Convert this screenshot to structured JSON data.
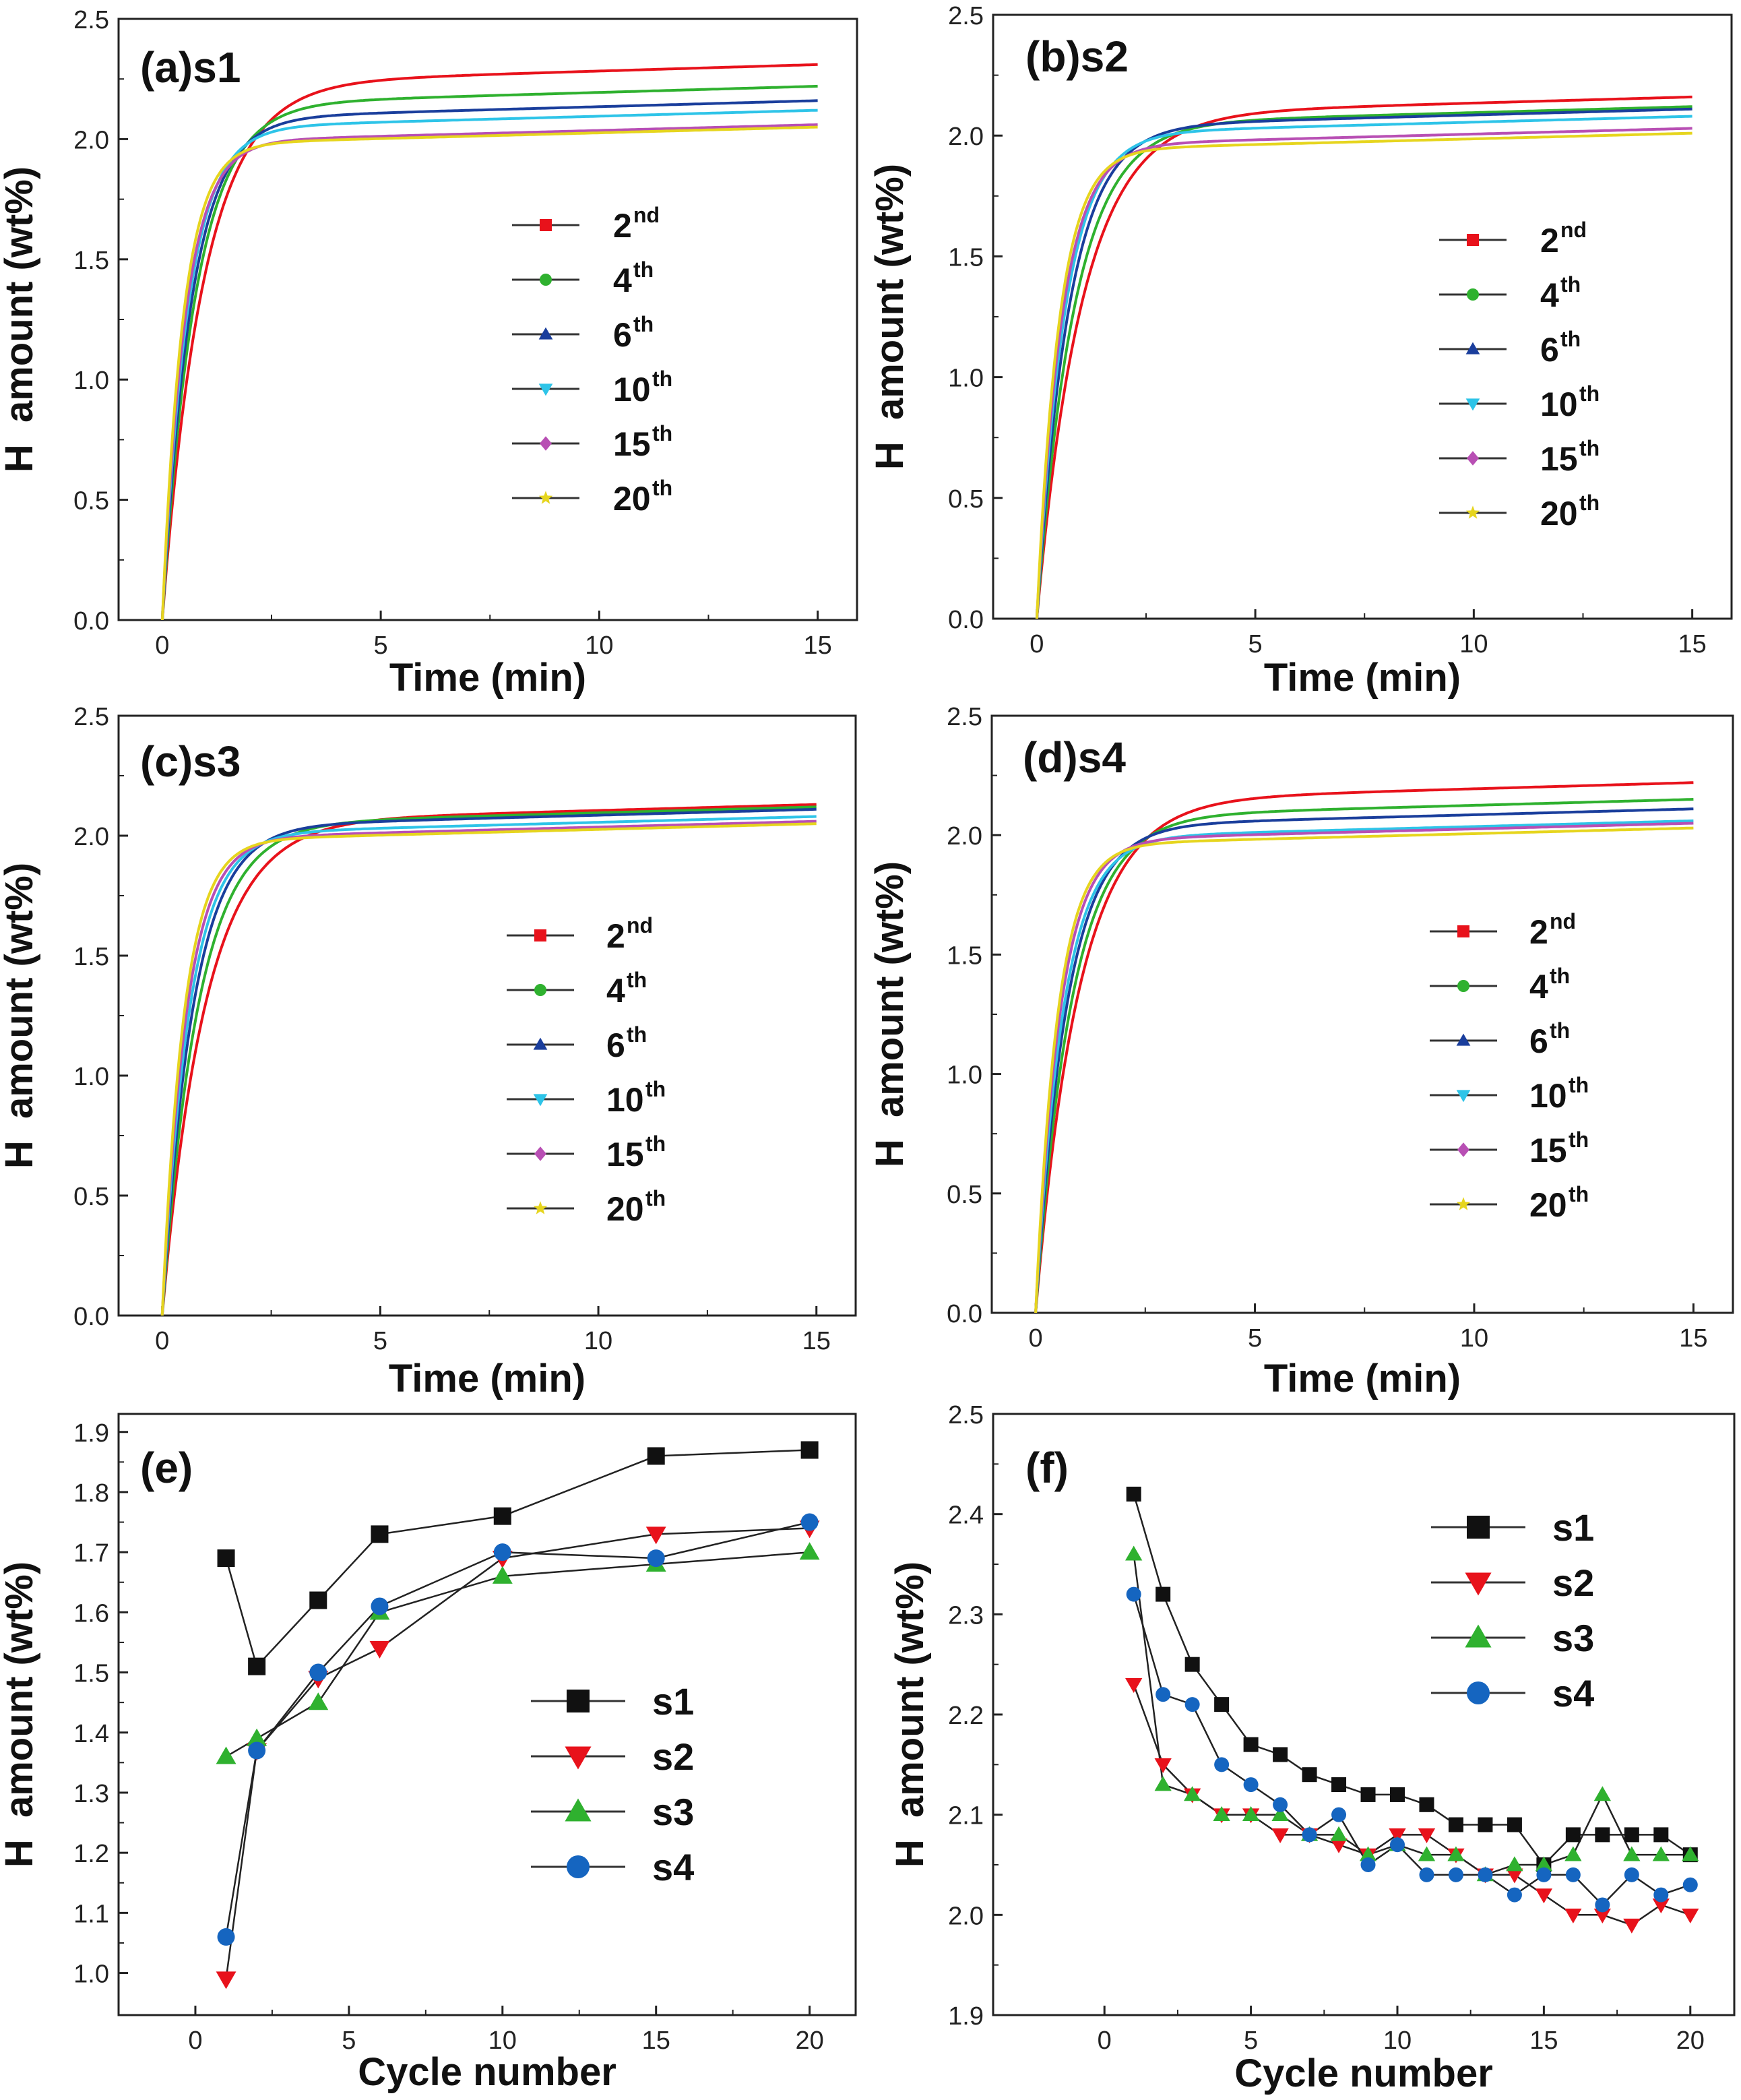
{
  "chart_data": [
    {
      "type": "line",
      "panel": "(a)s1",
      "xlabel": "Time (min)",
      "ylabel": "H  amount (wt%)",
      "xlim": [
        -1,
        15.9
      ],
      "ylim": [
        0,
        2.5
      ],
      "xticks": [
        "0",
        "5",
        "10",
        "15"
      ],
      "yticks": [
        "0.0",
        "0.5",
        "1.0",
        "1.5",
        "2.0",
        "2.5"
      ],
      "series": [
        {
          "name": "2nd",
          "label": "2",
          "sup": "nd",
          "color": "#e8121b",
          "marker": "square",
          "final": 2.31,
          "k": 1.05
        },
        {
          "name": "4th",
          "label": "4",
          "sup": "th",
          "color": "#2fb12f",
          "marker": "circle",
          "final": 2.22,
          "k": 1.3
        },
        {
          "name": "6th",
          "label": "6",
          "sup": "th",
          "color": "#1a3e9c",
          "marker": "triangle-up",
          "final": 2.16,
          "k": 1.5
        },
        {
          "name": "10th",
          "label": "10",
          "sup": "th",
          "color": "#2ec4e8",
          "marker": "triangle-down",
          "final": 2.12,
          "k": 1.7
        },
        {
          "name": "15th",
          "label": "15",
          "sup": "th",
          "color": "#b84fb4",
          "marker": "diamond",
          "final": 2.06,
          "k": 1.9
        },
        {
          "name": "20th",
          "label": "20",
          "sup": "th",
          "color": "#e6d51e",
          "marker": "star",
          "final": 2.05,
          "k": 2.1
        }
      ]
    },
    {
      "type": "line",
      "panel": "(b)s2",
      "xlabel": "Time (min)",
      "ylabel": "H  amount (wt%)",
      "xlim": [
        -1,
        15.9
      ],
      "ylim": [
        0,
        2.5
      ],
      "xticks": [
        "0",
        "5",
        "10",
        "15"
      ],
      "yticks": [
        "0.0",
        "0.5",
        "1.0",
        "1.5",
        "2.0",
        "2.5"
      ],
      "series": [
        {
          "name": "2nd",
          "label": "2",
          "sup": "nd",
          "color": "#e8121b",
          "marker": "square",
          "final": 2.16,
          "k": 0.95
        },
        {
          "name": "4th",
          "label": "4",
          "sup": "th",
          "color": "#2fb12f",
          "marker": "circle",
          "final": 2.12,
          "k": 1.15
        },
        {
          "name": "6th",
          "label": "6",
          "sup": "th",
          "color": "#1a3e9c",
          "marker": "triangle-up",
          "final": 2.11,
          "k": 1.35
        },
        {
          "name": "10th",
          "label": "10",
          "sup": "th",
          "color": "#2ec4e8",
          "marker": "triangle-down",
          "final": 2.08,
          "k": 1.55
        },
        {
          "name": "15th",
          "label": "15",
          "sup": "th",
          "color": "#b84fb4",
          "marker": "diamond",
          "final": 2.03,
          "k": 1.75
        },
        {
          "name": "20th",
          "label": "20",
          "sup": "th",
          "color": "#e6d51e",
          "marker": "star",
          "final": 2.01,
          "k": 1.95
        }
      ]
    },
    {
      "type": "line",
      "panel": "(c)s3",
      "xlabel": "Time (min)",
      "ylabel": "H  amount (wt%)",
      "xlim": [
        -1,
        15.9
      ],
      "ylim": [
        0,
        2.5
      ],
      "xticks": [
        "0",
        "5",
        "10",
        "15"
      ],
      "yticks": [
        "0.0",
        "0.5",
        "1.0",
        "1.5",
        "2.0",
        "2.5"
      ],
      "series": [
        {
          "name": "2nd",
          "label": "2",
          "sup": "nd",
          "color": "#e8121b",
          "marker": "square",
          "final": 2.13,
          "k": 1.0
        },
        {
          "name": "4th",
          "label": "4",
          "sup": "th",
          "color": "#2fb12f",
          "marker": "circle",
          "final": 2.12,
          "k": 1.2
        },
        {
          "name": "6th",
          "label": "6",
          "sup": "th",
          "color": "#1a3e9c",
          "marker": "triangle-up",
          "final": 2.11,
          "k": 1.4
        },
        {
          "name": "10th",
          "label": "10",
          "sup": "th",
          "color": "#2ec4e8",
          "marker": "triangle-down",
          "final": 2.08,
          "k": 1.6
        },
        {
          "name": "15th",
          "label": "15",
          "sup": "th",
          "color": "#b84fb4",
          "marker": "diamond",
          "final": 2.06,
          "k": 1.8
        },
        {
          "name": "20th",
          "label": "20",
          "sup": "th",
          "color": "#e6d51e",
          "marker": "star",
          "final": 2.05,
          "k": 2.0
        }
      ]
    },
    {
      "type": "line",
      "panel": "(d)s4",
      "xlabel": "Time (min)",
      "ylabel": "H  amount (wt%)",
      "xlim": [
        -1,
        15.9
      ],
      "ylim": [
        0,
        2.5
      ],
      "xticks": [
        "0",
        "5",
        "10",
        "15"
      ],
      "yticks": [
        "0.0",
        "0.5",
        "1.0",
        "1.5",
        "2.0",
        "2.5"
      ],
      "series": [
        {
          "name": "2nd",
          "label": "2",
          "sup": "nd",
          "color": "#e8121b",
          "marker": "square",
          "final": 2.22,
          "k": 1.0
        },
        {
          "name": "4th",
          "label": "4",
          "sup": "th",
          "color": "#2fb12f",
          "marker": "circle",
          "final": 2.15,
          "k": 1.2
        },
        {
          "name": "6th",
          "label": "6",
          "sup": "th",
          "color": "#1a3e9c",
          "marker": "triangle-up",
          "final": 2.11,
          "k": 1.4
        },
        {
          "name": "10th",
          "label": "10",
          "sup": "th",
          "color": "#2ec4e8",
          "marker": "triangle-down",
          "final": 2.06,
          "k": 1.6
        },
        {
          "name": "15th",
          "label": "15",
          "sup": "th",
          "color": "#b84fb4",
          "marker": "diamond",
          "final": 2.05,
          "k": 1.8
        },
        {
          "name": "20th",
          "label": "20",
          "sup": "th",
          "color": "#e6d51e",
          "marker": "star",
          "final": 2.03,
          "k": 2.0
        }
      ]
    },
    {
      "type": "line",
      "panel": "(e)",
      "xlabel": "Cycle number",
      "ylabel": "H  amount (wt%)",
      "xlim": [
        -2.5,
        21.5
      ],
      "ylim": [
        0.93,
        1.93
      ],
      "xticks": [
        "0",
        "5",
        "10",
        "15",
        "20"
      ],
      "yticks": [
        "1.0",
        "1.1",
        "1.2",
        "1.3",
        "1.4",
        "1.5",
        "1.6",
        "1.7",
        "1.8",
        "1.9"
      ],
      "series": [
        {
          "name": "s1",
          "color": "#111111",
          "marker": "square",
          "x": [
            1,
            2,
            4,
            6,
            10,
            15,
            20
          ],
          "y": [
            1.69,
            1.51,
            1.62,
            1.73,
            1.76,
            1.86,
            1.87
          ]
        },
        {
          "name": "s2",
          "color": "#e8121b",
          "marker": "triangle-down",
          "x": [
            1,
            2,
            4,
            6,
            10,
            15,
            20
          ],
          "y": [
            0.99,
            1.37,
            1.49,
            1.54,
            1.69,
            1.73,
            1.74
          ]
        },
        {
          "name": "s3",
          "color": "#2fb12f",
          "marker": "triangle-up",
          "x": [
            1,
            2,
            4,
            6,
            10,
            15,
            20
          ],
          "y": [
            1.36,
            1.39,
            1.45,
            1.6,
            1.66,
            1.68,
            1.7
          ]
        },
        {
          "name": "s4",
          "color": "#1565c0",
          "marker": "circle",
          "x": [
            1,
            2,
            4,
            6,
            10,
            15,
            20
          ],
          "y": [
            1.06,
            1.37,
            1.5,
            1.61,
            1.7,
            1.69,
            1.75
          ]
        }
      ]
    },
    {
      "type": "line",
      "panel": "(f)",
      "xlabel": "Cycle number",
      "ylabel": "H  amount (wt%)",
      "xlim": [
        -3.8,
        21.5
      ],
      "ylim": [
        1.9,
        2.5
      ],
      "xticks": [
        "0",
        "5",
        "10",
        "15",
        "20"
      ],
      "yticks": [
        "1.9",
        "2.0",
        "2.1",
        "2.2",
        "2.3",
        "2.4",
        "2.5"
      ],
      "series": [
        {
          "name": "s1",
          "color": "#111111",
          "marker": "square",
          "x": [
            1,
            2,
            3,
            4,
            5,
            6,
            7,
            8,
            9,
            10,
            11,
            12,
            13,
            14,
            15,
            16,
            17,
            18,
            19,
            20
          ],
          "y": [
            2.42,
            2.32,
            2.25,
            2.21,
            2.17,
            2.16,
            2.14,
            2.13,
            2.12,
            2.12,
            2.11,
            2.09,
            2.09,
            2.09,
            2.05,
            2.08,
            2.08,
            2.08,
            2.08,
            2.06
          ]
        },
        {
          "name": "s2",
          "color": "#e8121b",
          "marker": "triangle-down",
          "x": [
            1,
            2,
            3,
            4,
            5,
            6,
            7,
            8,
            9,
            10,
            11,
            12,
            13,
            14,
            15,
            16,
            17,
            18,
            19,
            20
          ],
          "y": [
            2.23,
            2.15,
            2.12,
            2.1,
            2.1,
            2.08,
            2.08,
            2.07,
            2.06,
            2.08,
            2.08,
            2.06,
            2.04,
            2.04,
            2.02,
            2.0,
            2.0,
            1.99,
            2.01,
            2.0
          ]
        },
        {
          "name": "s3",
          "color": "#2fb12f",
          "marker": "triangle-up",
          "x": [
            1,
            2,
            3,
            4,
            5,
            6,
            7,
            8,
            9,
            10,
            11,
            12,
            13,
            14,
            15,
            16,
            17,
            18,
            19,
            20
          ],
          "y": [
            2.36,
            2.13,
            2.12,
            2.1,
            2.1,
            2.1,
            2.08,
            2.08,
            2.06,
            2.07,
            2.06,
            2.06,
            2.04,
            2.05,
            2.05,
            2.06,
            2.12,
            2.06,
            2.06,
            2.06
          ]
        },
        {
          "name": "s4",
          "color": "#1565c0",
          "marker": "circle",
          "x": [
            1,
            2,
            3,
            4,
            5,
            6,
            7,
            8,
            9,
            10,
            11,
            12,
            13,
            14,
            15,
            16,
            17,
            18,
            19,
            20
          ],
          "y": [
            2.32,
            2.22,
            2.21,
            2.15,
            2.13,
            2.11,
            2.08,
            2.1,
            2.05,
            2.07,
            2.04,
            2.04,
            2.04,
            2.02,
            2.04,
            2.04,
            2.01,
            2.04,
            2.02,
            2.03
          ]
        }
      ]
    }
  ]
}
